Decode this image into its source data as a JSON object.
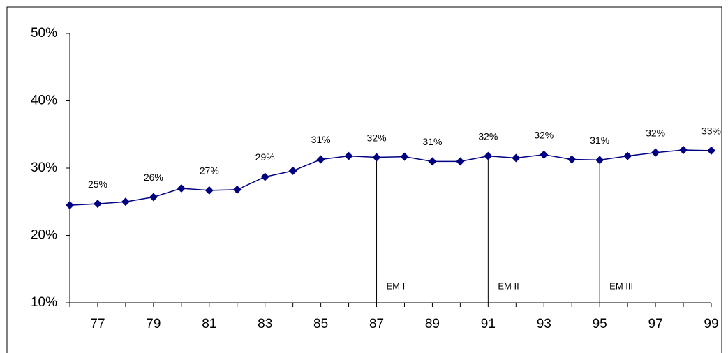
{
  "chart_data": {
    "type": "line",
    "categories": [
      null,
      "77",
      null,
      "79",
      null,
      "81",
      null,
      "83",
      null,
      "85",
      null,
      "87",
      null,
      "89",
      null,
      "91",
      null,
      "93",
      null,
      "95",
      null,
      "97",
      null,
      "99"
    ],
    "series": [
      {
        "color": "#000080",
        "values": [
          24.5,
          24.7,
          25.0,
          25.7,
          27.0,
          26.7,
          26.8,
          28.7,
          29.6,
          31.3,
          31.8,
          31.6,
          31.7,
          31.0,
          31.0,
          31.8,
          31.5,
          32.0,
          31.3,
          31.2,
          31.8,
          32.3,
          32.7,
          32.6
        ],
        "value_labels": [
          null,
          "25%",
          null,
          "26%",
          null,
          "27%",
          null,
          "29%",
          null,
          "31%",
          null,
          "32%",
          null,
          "31%",
          null,
          "32%",
          null,
          "32%",
          null,
          "31%",
          null,
          "32%",
          null,
          "33%"
        ]
      }
    ],
    "ylim": [
      10,
      50
    ],
    "yticks": [
      {
        "value": 10,
        "label": "10%"
      },
      {
        "value": 20,
        "label": "20%"
      },
      {
        "value": 30,
        "label": "30%"
      },
      {
        "value": 40,
        "label": "40%"
      },
      {
        "value": 50,
        "label": "50%"
      }
    ],
    "annotations": [
      {
        "category": "87",
        "text": "EM I"
      },
      {
        "category": "91",
        "text": "EM II"
      },
      {
        "category": "95",
        "text": "EM III"
      }
    ]
  }
}
